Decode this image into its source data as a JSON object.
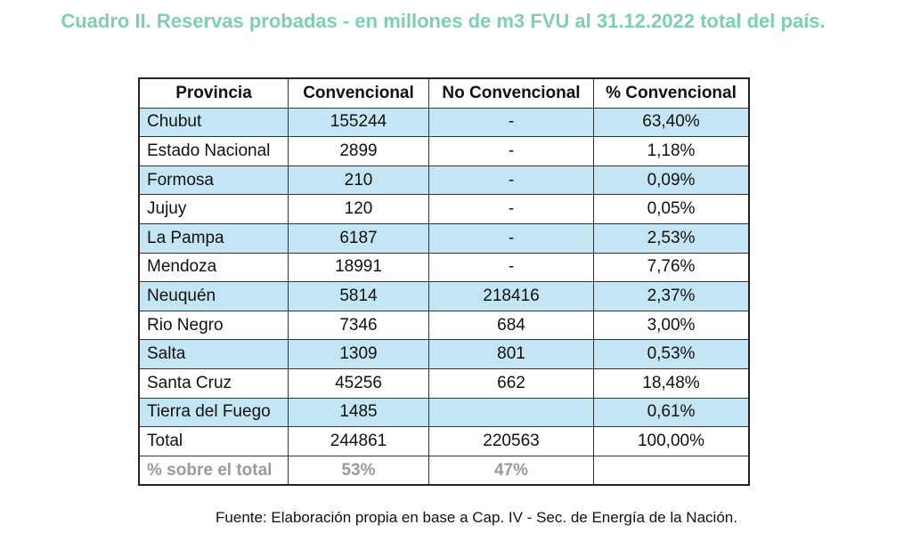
{
  "title": "Cuadro II. Reservas probadas - en millones de m3 FVU al 31.12.2022 total del país.",
  "colors": {
    "title": "#7ccfb4",
    "row_highlight": "#c3e5f4",
    "muted": "#9a9a9a"
  },
  "table": {
    "headers": [
      "Provincia",
      "Convencional",
      "No Convencional",
      "% Convencional"
    ],
    "rows": [
      [
        "Chubut",
        "155244",
        "-",
        "63,40%"
      ],
      [
        "Estado Nacional",
        "2899",
        "-",
        "1,18%"
      ],
      [
        "Formosa",
        "210",
        "-",
        "0,09%"
      ],
      [
        "Jujuy",
        "120",
        "-",
        "0,05%"
      ],
      [
        "La Pampa",
        "6187",
        "-",
        "2,53%"
      ],
      [
        "Mendoza",
        "18991",
        "-",
        "7,76%"
      ],
      [
        "Neuquén",
        "5814",
        "218416",
        "2,37%"
      ],
      [
        "Rio Negro",
        "7346",
        "684",
        "3,00%"
      ],
      [
        "Salta",
        "1309",
        "801",
        "0,53%"
      ],
      [
        "Santa Cruz",
        "45256",
        "662",
        "18,48%"
      ],
      [
        "Tierra del Fuego",
        "1485",
        "",
        "0,61%"
      ],
      [
        "Total",
        "244861",
        "220563",
        "100,00%"
      ],
      [
        "% sobre el total",
        "53%",
        "47%",
        ""
      ]
    ]
  },
  "footer": "Fuente: Elaboración propia en base a Cap. IV -  Sec. de Energía de la Nación."
}
